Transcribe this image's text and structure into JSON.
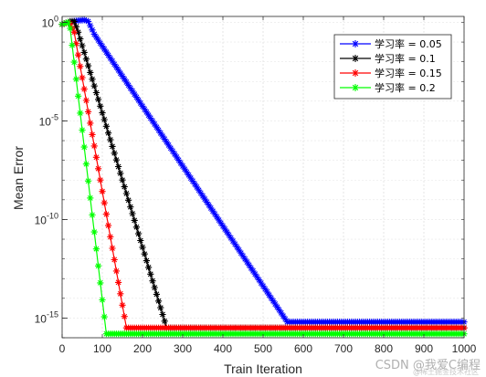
{
  "chart_data": {
    "type": "line",
    "title": "",
    "xlabel": "Train Iteration",
    "ylabel": "Mean Error",
    "xlim": [
      0,
      1000
    ],
    "ylim_exponent": [
      -16,
      0.3
    ],
    "yscale": "log",
    "grid": true,
    "legend_position": "top-right",
    "x_ticks": [
      0,
      100,
      200,
      300,
      400,
      500,
      600,
      700,
      800,
      900,
      1000
    ],
    "y_ticks": [
      {
        "base": "10",
        "exp": "0",
        "value": 0
      },
      {
        "base": "10",
        "exp": "-5",
        "value": -5
      },
      {
        "base": "10",
        "exp": "-10",
        "value": -10
      },
      {
        "base": "10",
        "exp": "-15",
        "value": -15
      }
    ],
    "series": [
      {
        "name": "学习率 = 0.05",
        "color": "#0000ff",
        "marker": "*",
        "points_log10": [
          [
            0,
            -0.1
          ],
          [
            25,
            0.05
          ],
          [
            45,
            0.1
          ],
          [
            55,
            0.12
          ],
          [
            65,
            0.05
          ],
          [
            80,
            -0.6
          ],
          [
            560,
            -15.2
          ],
          [
            1000,
            -15.2
          ]
        ]
      },
      {
        "name": "学习率 = 0.1",
        "color": "#000000",
        "marker": "*",
        "points_log10": [
          [
            0,
            -0.1
          ],
          [
            20,
            0.05
          ],
          [
            30,
            0.05
          ],
          [
            40,
            -0.5
          ],
          [
            260,
            -15.5
          ],
          [
            1000,
            -15.5
          ]
        ]
      },
      {
        "name": "学习率 = 0.15",
        "color": "#ff0000",
        "marker": "*",
        "points_log10": [
          [
            0,
            -0.1
          ],
          [
            18,
            0.0
          ],
          [
            30,
            -0.5
          ],
          [
            160,
            -15.5
          ],
          [
            1000,
            -15.5
          ]
        ]
      },
      {
        "name": "学习率 = 0.2",
        "color": "#00ff00",
        "marker": "*",
        "points_log10": [
          [
            0,
            -0.1
          ],
          [
            15,
            0.0
          ],
          [
            20,
            -0.3
          ],
          [
            110,
            -15.8
          ],
          [
            1000,
            -15.8
          ]
        ]
      }
    ]
  },
  "watermark": {
    "text": "CSDN @我爱C编程",
    "subtext": "@稀土掘金技术社区"
  }
}
